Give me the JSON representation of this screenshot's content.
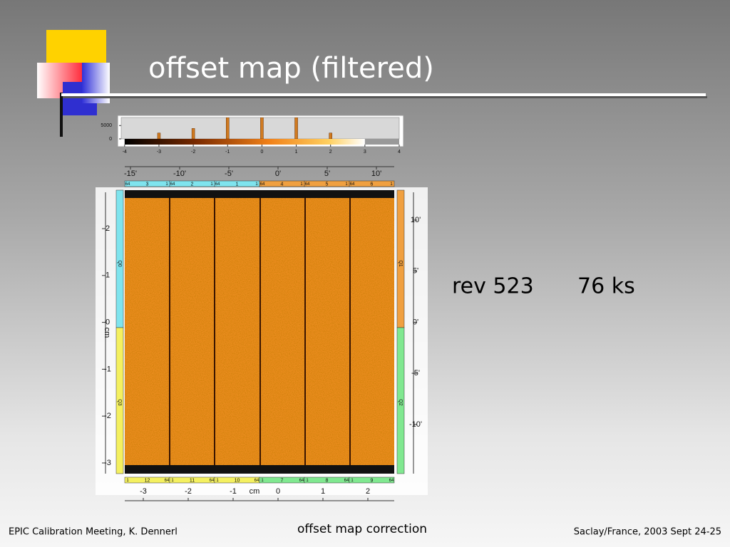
{
  "title": "offset map  (filtered)",
  "annotation": {
    "revolution": "rev 523",
    "exposure": "76 ks"
  },
  "footer": {
    "left": "EPIC Calibration Meeting, K. Dennerl",
    "center": "offset map correction",
    "right": "Saclay/France, 2003 Sept 24-25"
  },
  "figure": {
    "histogram": {
      "xlim": [
        -4.1,
        4
      ],
      "xticks": [
        -4,
        -3,
        -2,
        -1,
        0,
        1,
        2,
        3,
        4
      ],
      "ylim": [
        0,
        8000
      ],
      "yticks": [
        0,
        5000
      ],
      "bars": [
        {
          "x": -3,
          "count": 2200
        },
        {
          "x": -2,
          "count": 3900
        },
        {
          "x": -1,
          "count": 8000
        },
        {
          "x": 0,
          "count": 8000
        },
        {
          "x": 1,
          "count": 8000
        },
        {
          "x": 2,
          "count": 2200
        }
      ]
    },
    "top_axis": [
      "-15'",
      "-10'",
      "-5'",
      "0'",
      "5'",
      "10'"
    ],
    "right_axis": [
      "10'",
      "5'",
      "0'",
      "-5'",
      "-10'"
    ],
    "left_axis": {
      "label": "cm",
      "ticks": [
        "2",
        "1",
        "0",
        "-1",
        "-2",
        "-3"
      ]
    },
    "bottom_axis": {
      "label": "cm",
      "ticks": [
        "-3",
        "-2",
        "-1",
        "0",
        "1",
        "2"
      ]
    },
    "ccd_top": [
      [
        "64",
        "3",
        "1"
      ],
      [
        "64",
        "2",
        "1"
      ],
      [
        "64",
        "1",
        "1"
      ],
      [
        "64",
        "4",
        "1"
      ],
      [
        "64",
        "5",
        "1"
      ],
      [
        "64",
        "6",
        "1"
      ]
    ],
    "ccd_bottom": [
      [
        "1",
        "12",
        "64"
      ],
      [
        "1",
        "11",
        "64"
      ],
      [
        "1",
        "10",
        "64"
      ],
      [
        "1",
        "7",
        "64"
      ],
      [
        "1",
        "8",
        "64"
      ],
      [
        "1",
        "9",
        "64"
      ]
    ],
    "quadrants": {
      "left": [
        "Q0",
        "Q3"
      ],
      "right": [
        "Q1",
        "Q2"
      ]
    }
  }
}
